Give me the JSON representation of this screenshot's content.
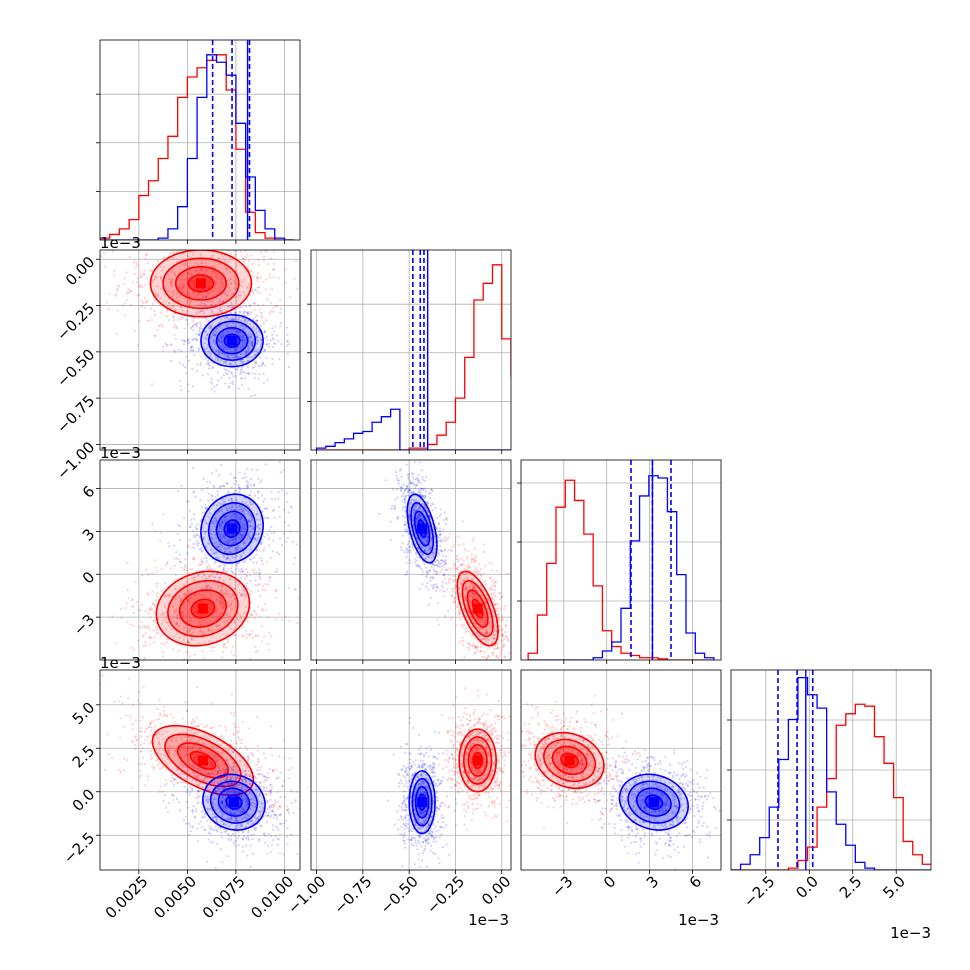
{
  "chart_data": {
    "type": "corner",
    "series": [
      {
        "color": "#ff0000"
      },
      {
        "color": "#0000ff"
      }
    ],
    "grid": true,
    "params": [
      {
        "range": [
          0.0005,
          0.0108
        ],
        "ticks": [
          0.0025,
          0.005,
          0.0075,
          0.01
        ],
        "tick_labels": [
          "0.0025",
          "0.0050",
          "0.0075",
          "0.0100"
        ]
      },
      {
        "range": [
          -1.03,
          0.05
        ],
        "ticks": [
          -1.0,
          -0.75,
          -0.5,
          -0.25,
          0.0
        ],
        "tick_labels": [
          "−1.00",
          "−0.75",
          "−0.50",
          "−0.25",
          "0.00"
        ],
        "offset_label": "1e−3"
      },
      {
        "range": [
          -6.0,
          8.0
        ],
        "ticks": [
          -3,
          0,
          3,
          6
        ],
        "tick_labels": [
          "−3",
          "0",
          "3",
          "6"
        ],
        "offset_label": "1e−3"
      },
      {
        "range": [
          -4.5,
          7.0
        ],
        "ticks": [
          -2.5,
          0.0,
          2.5,
          5.0
        ],
        "tick_labels": [
          "−2.5",
          "0.0",
          "2.5",
          "5.0"
        ],
        "offset_label": "1e−3"
      }
    ],
    "diagonals": [
      {
        "red_hist": {
          "edges_start": 0.0005,
          "bin_width": 0.0005,
          "counts": [
            0.1,
            0.3,
            0.6,
            1.1,
            2.4,
            3.2,
            4.4,
            5.6,
            7.7,
            8.8,
            9.3,
            9.7,
            10.0,
            8.1,
            4.9,
            1.5,
            0.4,
            0.1,
            0,
            0
          ]
        },
        "blue_hist": {
          "edges_start": 0.0005,
          "bin_width": 0.0005,
          "counts": [
            0,
            0,
            0,
            0,
            0,
            0,
            0.1,
            0.6,
            1.8,
            4.4,
            7.7,
            10.0,
            9.6,
            8.9,
            6.3,
            3.4,
            1.6,
            0.6,
            0.1,
            0
          ]
        },
        "blue_quantiles": [
          0.0063,
          0.0073,
          0.0082
        ],
        "blue_truth": 0.0081,
        "ymax": 10.8
      },
      {
        "red_hist": {
          "edges_start": -1.0,
          "bin_width": 0.05,
          "counts": [
            0,
            0,
            0,
            0,
            0,
            0,
            0,
            0,
            0,
            0,
            0.1,
            0.1,
            0.3,
            0.8,
            1.5,
            2.8,
            5.0,
            8.1,
            9.0,
            10.0,
            6.0,
            4.0,
            1.0,
            0.2
          ]
        },
        "blue_hist": {
          "edges_start": -1.0,
          "bin_width": 0.05,
          "counts": [
            0.1,
            0.2,
            0.4,
            0.6,
            0.9,
            1.0,
            1.5,
            1.8,
            2.2,
            0,
            0,
            0,
            0,
            0,
            0,
            0,
            0,
            0,
            0,
            0,
            0,
            0,
            0,
            0
          ]
        },
        "blue_quantiles": [
          -0.48,
          -0.44,
          -0.42
        ],
        "blue_truth": -0.4,
        "ymax": 10.8
      },
      {
        "red_hist": {
          "edges_start": -5.5,
          "bin_width": 0.65,
          "counts": [
            0.3,
            2.0,
            4.3,
            6.8,
            8.0,
            7.1,
            5.6,
            3.3,
            1.3,
            0.6,
            0.3,
            0.2,
            0.1,
            0.1,
            0.05,
            0,
            0,
            0,
            0,
            0
          ]
        },
        "blue_hist": {
          "edges_start": -5.5,
          "bin_width": 0.65,
          "counts": [
            0,
            0,
            0,
            0,
            0,
            0,
            0,
            0.1,
            0.4,
            0.8,
            2.3,
            5.3,
            7.3,
            8.2,
            8.1,
            6.6,
            3.8,
            1.2,
            0.3,
            0.1
          ]
        },
        "blue_quantiles": [
          1.7,
          3.2,
          4.5
        ],
        "blue_truth": 3.2,
        "ymax": 8.9
      },
      {
        "red_hist": {
          "edges_start": -4.5,
          "bin_width": 0.55,
          "counts": [
            0,
            0,
            0,
            0,
            0,
            0,
            0.1,
            0.5,
            1.2,
            3.3,
            4.8,
            7.6,
            8.2,
            8.7,
            8.6,
            7.0,
            5.6,
            3.8,
            1.5,
            0.8,
            0.3,
            0.1
          ]
        },
        "blue_hist": {
          "edges_start": -4.5,
          "bin_width": 0.55,
          "counts": [
            0,
            0.3,
            0.8,
            1.7,
            3.3,
            5.8,
            7.9,
            10.1,
            9.2,
            8.5,
            4.1,
            2.4,
            1.3,
            0.4,
            0.1,
            0,
            0,
            0,
            0,
            0,
            0,
            0
          ]
        },
        "blue_quantiles": [
          -1.8,
          -0.7,
          0.2
        ],
        "blue_truth": -0.2,
        "ymax": 10.5
      }
    ],
    "pairs": [
      {
        "row": 1,
        "col": 0,
        "red": {
          "mean": [
            0.0057,
            -0.13
          ],
          "sd": [
            0.0013,
            0.09
          ],
          "rho": 0.0
        },
        "blue": {
          "mean": [
            0.0073,
            -0.44
          ],
          "sd": [
            0.0008,
            0.07
          ],
          "rho": 0.0
        }
      },
      {
        "row": 2,
        "col": 0,
        "red": {
          "mean": [
            0.0058,
            -2.4
          ],
          "sd": [
            0.0012,
            1.3
          ],
          "rho": 0.15
        },
        "blue": {
          "mean": [
            0.0073,
            3.2
          ],
          "sd": [
            0.0008,
            1.2
          ],
          "rho": 0.1
        }
      },
      {
        "row": 2,
        "col": 1,
        "red": {
          "mean": [
            -0.13,
            -2.4
          ],
          "sd": [
            0.055,
            1.3
          ],
          "rho": -0.6
        },
        "blue": {
          "mean": [
            -0.43,
            3.2
          ],
          "sd": [
            0.04,
            1.2
          ],
          "rho": -0.5
        }
      },
      {
        "row": 3,
        "col": 0,
        "red": {
          "mean": [
            0.0058,
            1.8
          ],
          "sd": [
            0.0013,
            1.0
          ],
          "rho": -0.55
        },
        "blue": {
          "mean": [
            0.0074,
            -0.6
          ],
          "sd": [
            0.0008,
            0.8
          ],
          "rho": -0.1
        }
      },
      {
        "row": 3,
        "col": 1,
        "red": {
          "mean": [
            -0.13,
            1.8
          ],
          "sd": [
            0.05,
            0.9
          ],
          "rho": 0.0
        },
        "blue": {
          "mean": [
            -0.43,
            -0.6
          ],
          "sd": [
            0.035,
            0.9
          ],
          "rho": 0.0
        }
      },
      {
        "row": 3,
        "col": 2,
        "red": {
          "mean": [
            -2.6,
            1.8
          ],
          "sd": [
            1.2,
            0.8
          ],
          "rho": -0.2
        },
        "blue": {
          "mean": [
            3.3,
            -0.6
          ],
          "sd": [
            1.2,
            0.8
          ],
          "rho": -0.15
        }
      }
    ]
  }
}
